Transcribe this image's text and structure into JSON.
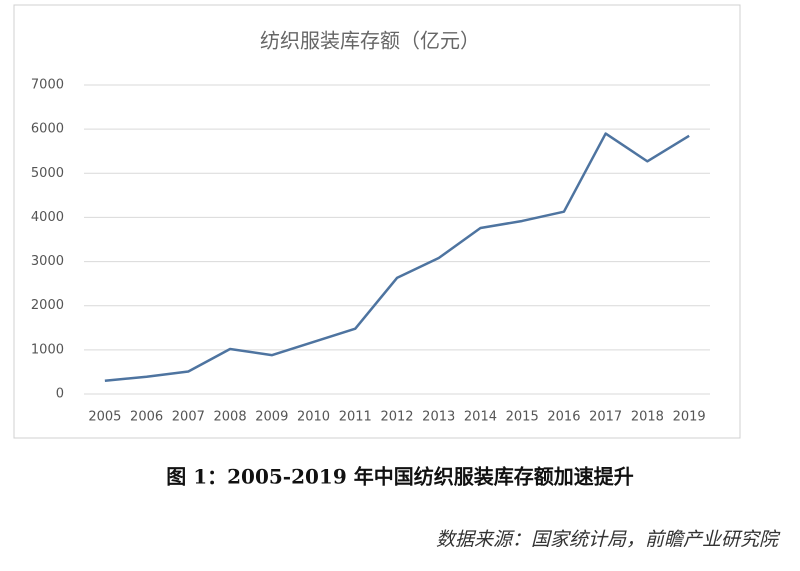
{
  "chart_data": {
    "type": "line",
    "title": "纺织服装库存额（亿元）",
    "categories": [
      "2005",
      "2006",
      "2007",
      "2008",
      "2009",
      "2010",
      "2011",
      "2012",
      "2013",
      "2014",
      "2015",
      "2016",
      "2017",
      "2018",
      "2019"
    ],
    "series": [
      {
        "name": "纺织服装库存额",
        "color": "#4e74a0",
        "values": [
          300,
          390,
          510,
          1020,
          880,
          1180,
          1480,
          2630,
          3080,
          3760,
          3920,
          4130,
          5900,
          5270,
          5850
        ]
      }
    ],
    "ylim": [
      0,
      7000
    ],
    "yticks": [
      0,
      1000,
      2000,
      3000,
      4000,
      5000,
      6000,
      7000
    ],
    "grid": true
  },
  "caption": "图 1：2005-2019 年中国纺织服装库存额加速提升",
  "source": "数据来源：国家统计局，前瞻产业研究院"
}
